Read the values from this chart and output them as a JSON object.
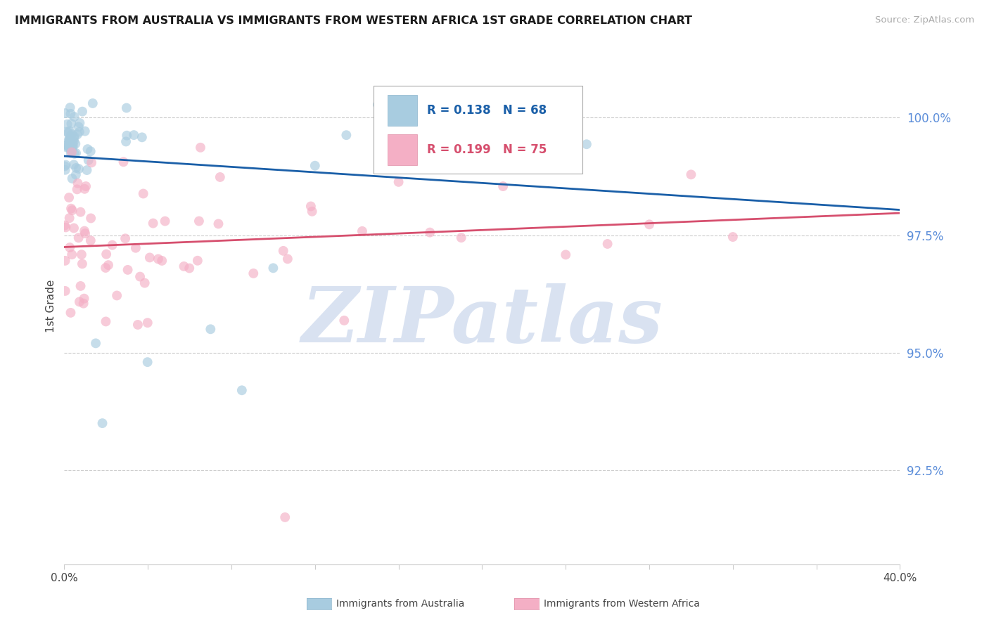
{
  "title": "IMMIGRANTS FROM AUSTRALIA VS IMMIGRANTS FROM WESTERN AFRICA 1ST GRADE CORRELATION CHART",
  "source": "Source: ZipAtlas.com",
  "ylabel": "1st Grade",
  "yticks": [
    92.5,
    95.0,
    97.5,
    100.0
  ],
  "ytick_labels": [
    "92.5%",
    "95.0%",
    "97.5%",
    "100.0%"
  ],
  "xlim": [
    0.0,
    40.0
  ],
  "ylim": [
    90.5,
    101.5
  ],
  "xtick_left": "0.0%",
  "xtick_right": "40.0%",
  "R_australia": 0.138,
  "N_australia": 68,
  "R_western_africa": 0.199,
  "N_western_africa": 75,
  "color_australia": "#a8cce0",
  "color_western_africa": "#f4afc5",
  "trendline_color_australia": "#1a5fa8",
  "trendline_color_western_africa": "#d64f6e",
  "background_color": "#ffffff",
  "watermark_color": "#d5dff0",
  "grid_color": "#cccccc",
  "legend_text_blue": "#1a5fa8",
  "legend_text_pink": "#d64f6e",
  "bottom_label_australia": "Immigrants from Australia",
  "bottom_label_western_africa": "Immigrants from Western Africa",
  "source_color": "#aaaaaa",
  "title_color": "#1a1a1a",
  "ylabel_color": "#444444",
  "ytick_color": "#5b8dd9"
}
